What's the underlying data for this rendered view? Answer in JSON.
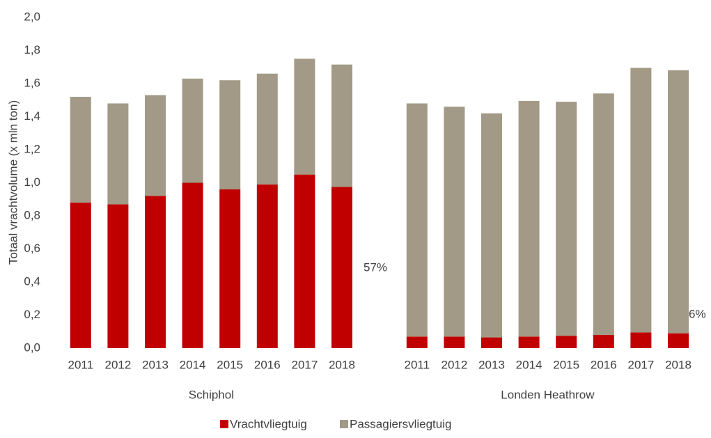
{
  "chart_data": {
    "type": "bar",
    "stacked": true,
    "ylabel": "Totaal vrachtvolume (x mln ton)",
    "ylim": [
      0,
      2
    ],
    "yticks": [
      {
        "value": 0,
        "label": "0,0"
      },
      {
        "value": 0.2,
        "label": "0,2"
      },
      {
        "value": 0.4,
        "label": "0,4"
      },
      {
        "value": 0.6,
        "label": "0,6"
      },
      {
        "value": 0.8,
        "label": "0,8"
      },
      {
        "value": 1.0,
        "label": "1,0"
      },
      {
        "value": 1.2,
        "label": "1,2"
      },
      {
        "value": 1.4,
        "label": "1,4"
      },
      {
        "value": 1.6,
        "label": "1,6"
      },
      {
        "value": 1.8,
        "label": "1,8"
      },
      {
        "value": 2.0,
        "label": "2,0"
      }
    ],
    "series": [
      {
        "name": "Vrachtvliegtuig",
        "color": "#c00000"
      },
      {
        "name": "Passagiersvliegtuig",
        "color": "#a29a86"
      }
    ],
    "groups": [
      {
        "label": "Schiphol",
        "categories": [
          "2011",
          "2012",
          "2013",
          "2014",
          "2015",
          "2016",
          "2017",
          "2018"
        ],
        "values": [
          [
            0.88,
            0.87,
            0.92,
            1.0,
            0.96,
            0.99,
            1.05,
            0.975
          ],
          [
            0.64,
            0.61,
            0.61,
            0.63,
            0.66,
            0.67,
            0.7,
            0.74
          ]
        ]
      },
      {
        "label": "Londen Heathrow",
        "categories": [
          "2011",
          "2012",
          "2013",
          "2014",
          "2015",
          "2016",
          "2017",
          "2018"
        ],
        "values": [
          [
            0.07,
            0.07,
            0.065,
            0.07,
            0.075,
            0.08,
            0.095,
            0.09
          ],
          [
            1.41,
            1.39,
            1.355,
            1.425,
            1.415,
            1.46,
            1.6,
            1.59
          ]
        ]
      }
    ],
    "annotations": [
      "57%",
      "6%"
    ]
  }
}
